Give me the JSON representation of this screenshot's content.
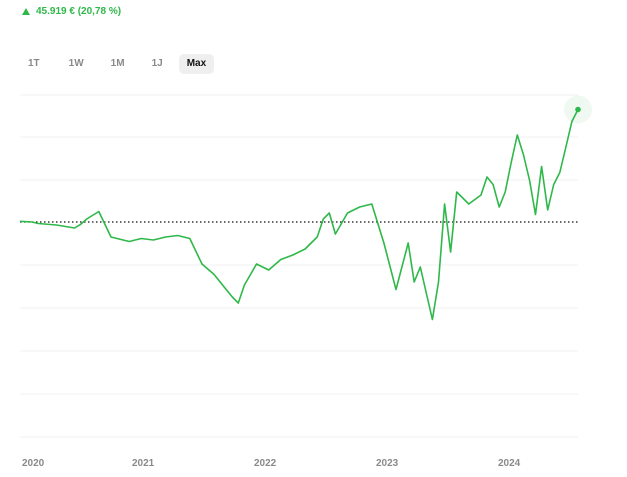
{
  "header": {
    "performance_text": "45.919 € (20,78 %)",
    "trend_icon": "arrow-up-icon",
    "color": "#2fb84a"
  },
  "range_tabs": [
    {
      "label": "1T",
      "active": false
    },
    {
      "label": "1W",
      "active": false
    },
    {
      "label": "1M",
      "active": false
    },
    {
      "label": "1J",
      "active": false
    },
    {
      "label": "Max",
      "active": true
    }
  ],
  "chart_data": {
    "type": "line",
    "title": "",
    "xlabel": "",
    "ylabel": "",
    "x_ticks": [
      "2020",
      "2021",
      "2022",
      "2023",
      "2024"
    ],
    "baseline_relative_percent": 0,
    "reference_line": "dotted",
    "grid": "horizontal",
    "line_color": "#2fb84a",
    "series": [
      {
        "x": [
          2020.0,
          2020.1,
          2020.15,
          2020.3,
          2020.45,
          2020.5,
          2020.55,
          2020.65,
          2020.75,
          2020.85,
          2020.9,
          2021.0,
          2021.1,
          2021.2,
          2021.3,
          2021.4,
          2021.5,
          2021.6,
          2021.7,
          2021.75,
          2021.8,
          2021.85,
          2021.9,
          2021.95,
          2022.05,
          2022.15,
          2022.25,
          2022.35,
          2022.45,
          2022.5,
          2022.55,
          2022.6,
          2022.7,
          2022.8,
          2022.9,
          2023.0,
          2023.1,
          2023.2,
          2023.25,
          2023.3,
          2023.4,
          2023.45,
          2023.5,
          2023.55,
          2023.6,
          2023.7,
          2023.8,
          2023.85,
          2023.9,
          2023.95,
          2024.0,
          2024.05,
          2024.1,
          2024.15,
          2024.2,
          2024.25,
          2024.3,
          2024.35,
          2024.4,
          2024.45,
          2024.5,
          2024.55,
          2024.6
        ],
        "y": [
          0.5,
          0.0,
          -1.0,
          -2.0,
          -4.0,
          -1.5,
          2.0,
          7.0,
          -10.0,
          -12.0,
          -13.0,
          -11.0,
          -12.0,
          -10.0,
          -9.0,
          -11.0,
          -28.0,
          -35.0,
          -45.0,
          -50.0,
          -54.0,
          -42.0,
          -35.0,
          -28.0,
          -32.0,
          -25.0,
          -22.0,
          -18.0,
          -10.0,
          2.0,
          6.0,
          -8.0,
          6.0,
          10.0,
          12.0,
          -14.0,
          -45.0,
          -14.0,
          -40.0,
          -30.0,
          -65.0,
          -40.0,
          12.0,
          -20.0,
          20.0,
          12.0,
          18.0,
          30.0,
          25.0,
          10.0,
          20.0,
          40.0,
          58.0,
          45.0,
          28.0,
          5.0,
          37.0,
          8.0,
          25.0,
          33.0,
          50.0,
          67.0,
          75.0
        ]
      }
    ]
  }
}
